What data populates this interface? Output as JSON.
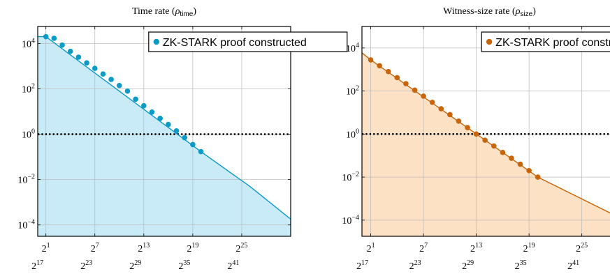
{
  "chart_data": [
    {
      "type": "area",
      "title_prefix": "Time rate (",
      "title_symbol": "ρ",
      "title_subscript": "time",
      "title_suffix": ")",
      "yscale": "log10",
      "ylim_exp": [
        -4.5,
        4.75
      ],
      "ytick_exps": [
        -4,
        -2,
        0,
        2,
        4
      ],
      "xtick_exps": [
        1,
        7,
        13,
        19,
        25
      ],
      "xtick_secondary_exps": [
        17,
        23,
        29,
        35,
        41
      ],
      "xlim_exp": [
        0,
        31
      ],
      "threshold": 1,
      "color": "#0b9bc6",
      "fill": "#c8ebf7",
      "series": [
        {
          "name": "ZK-STARK proof constructed",
          "x_exp": [
            1,
            2,
            3,
            4,
            5,
            6,
            7,
            8,
            9,
            10,
            11,
            12,
            13,
            14,
            15,
            16,
            17,
            18,
            19,
            20
          ],
          "y": [
            20000,
            17000,
            8500,
            4500,
            2500,
            1400,
            800,
            450,
            260,
            140,
            80,
            35,
            18,
            9.5,
            5,
            2.7,
            1.4,
            0.7,
            0.35,
            0.17
          ]
        }
      ],
      "line_x_exp": [
        0,
        1,
        20,
        26,
        31
      ],
      "line_y": [
        20000,
        20000,
        0.17,
        0.005,
        0.00018
      ]
    },
    {
      "type": "area",
      "title_prefix": "Witness-size rate (",
      "title_symbol": "ρ",
      "title_subscript": "size",
      "title_suffix": ")",
      "yscale": "log10",
      "ylim_exp": [
        -4.75,
        5.0
      ],
      "ytick_exps": [
        -4,
        -2,
        0,
        2,
        4
      ],
      "xtick_exps": [
        1,
        7,
        13,
        19,
        25
      ],
      "xtick_secondary_exps": [
        17,
        23,
        29,
        35,
        41
      ],
      "xlim_exp": [
        0,
        29
      ],
      "threshold": 1,
      "color": "#c8650b",
      "fill": "#fde1c4",
      "series": [
        {
          "name": "ZK-STARK proof constructed",
          "x_exp": [
            1,
            2,
            3,
            4,
            5,
            6,
            7,
            8,
            9,
            10,
            11,
            12,
            13,
            14,
            15,
            16,
            17,
            18,
            19,
            20
          ],
          "y": [
            2800,
            1500,
            800,
            420,
            220,
            110,
            58,
            30,
            15,
            8,
            4,
            2,
            1,
            0.52,
            0.28,
            0.14,
            0.075,
            0.04,
            0.02,
            0.01
          ]
        }
      ],
      "line_x_exp": [
        0,
        1,
        20,
        29
      ],
      "line_y": [
        6000,
        2800,
        0.01,
        0.00015
      ]
    }
  ]
}
